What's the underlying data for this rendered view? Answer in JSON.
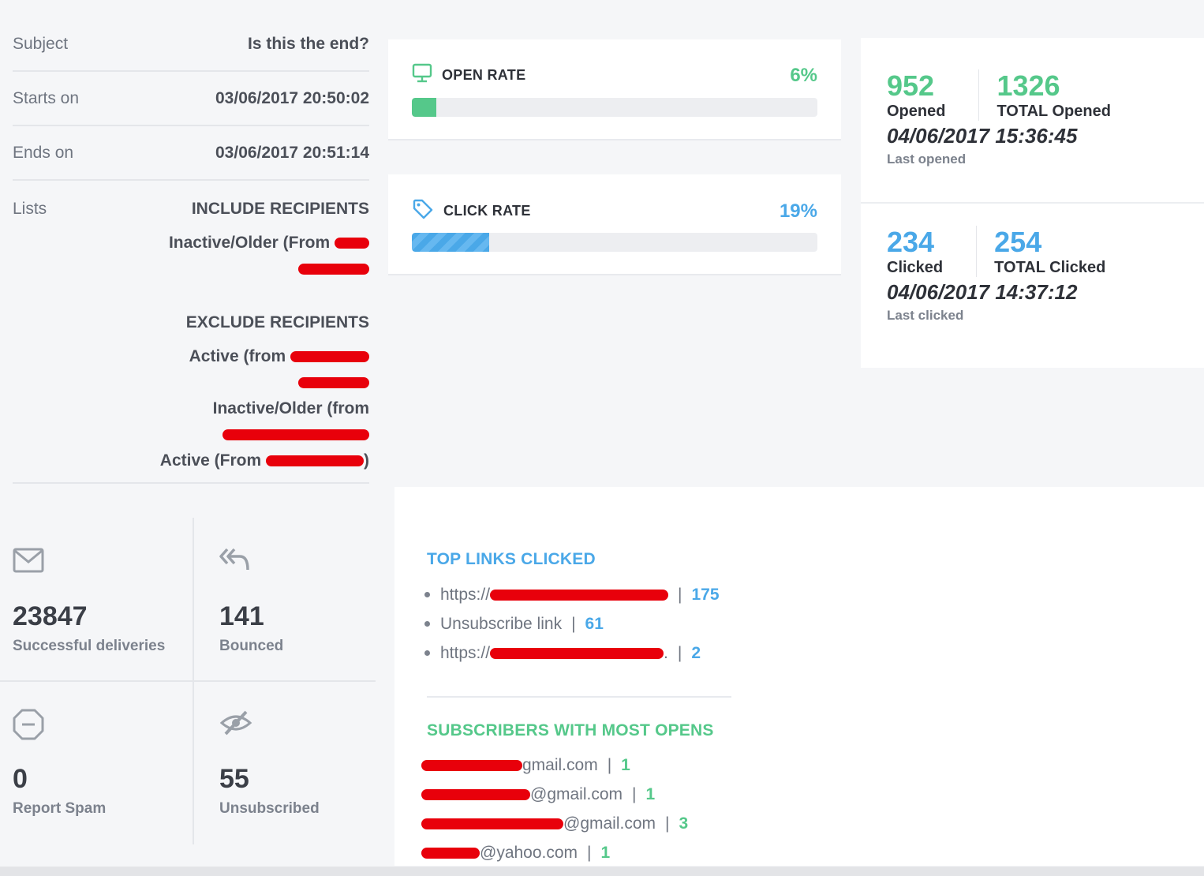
{
  "details": {
    "subject_label": "Subject",
    "subject_value": "Is this the end?",
    "starts_label": "Starts on",
    "starts_value": "03/06/2017 20:50:02",
    "ends_label": "Ends on",
    "ends_value": "03/06/2017 20:51:14",
    "lists_label": "Lists",
    "include_heading": "INCLUDE RECIPIENTS",
    "include_items": [
      "Inactive/Older (From"
    ],
    "exclude_heading": "EXCLUDE RECIPIENTS",
    "exclude_items": [
      "Active (from",
      "Inactive/Older (from",
      "Active (From",
      ")"
    ]
  },
  "open_rate": {
    "label": "OPEN RATE",
    "percent_text": "6%",
    "percent": 6,
    "icon": "monitor-icon",
    "color": "#55c88a"
  },
  "click_rate": {
    "label": "CLICK RATE",
    "percent_text": "19%",
    "percent": 19,
    "icon": "tag-icon",
    "color": "#4aa8e8"
  },
  "opens": {
    "opened": "952",
    "opened_label": "Opened",
    "total_opened": "1326",
    "total_opened_label": "TOTAL Opened",
    "last_date": "04/06/2017 15:36:45",
    "last_label": "Last opened",
    "color": "#55c88a"
  },
  "clicks": {
    "clicked": "234",
    "clicked_label": "Clicked",
    "total_clicked": "254",
    "total_clicked_label": "TOTAL Clicked",
    "last_date": "04/06/2017 14:37:12",
    "last_label": "Last clicked",
    "color": "#4aa8e8"
  },
  "delivery": {
    "successful": {
      "value": "23847",
      "label": "Successful deliveries",
      "icon": "envelope-icon"
    },
    "bounced": {
      "value": "141",
      "label": "Bounced",
      "icon": "reply-all-icon"
    },
    "spam": {
      "value": "0",
      "label": "Report Spam",
      "icon": "minus-circle-icon"
    },
    "unsubscribed": {
      "value": "55",
      "label": "Unsubscribed",
      "icon": "eye-slash-icon"
    }
  },
  "top_links": {
    "title": "TOP LINKS CLICKED",
    "items": [
      {
        "text": "https://",
        "count": "175"
      },
      {
        "text": "Unsubscribe link",
        "count": "61"
      },
      {
        "text": "https://",
        "suffix": ".",
        "count": "2"
      }
    ]
  },
  "most_opens": {
    "title": "SUBSCRIBERS WITH MOST OPENS",
    "items": [
      {
        "text": "gmail.com",
        "count": "1"
      },
      {
        "text": "@gmail.com",
        "count": "1"
      },
      {
        "text": "@gmail.com",
        "count": "3"
      },
      {
        "text": "@yahoo.com",
        "count": "1"
      }
    ]
  },
  "colors": {
    "green": "#55c88a",
    "blue": "#4aa8e8",
    "redaction": "#e8000b"
  }
}
